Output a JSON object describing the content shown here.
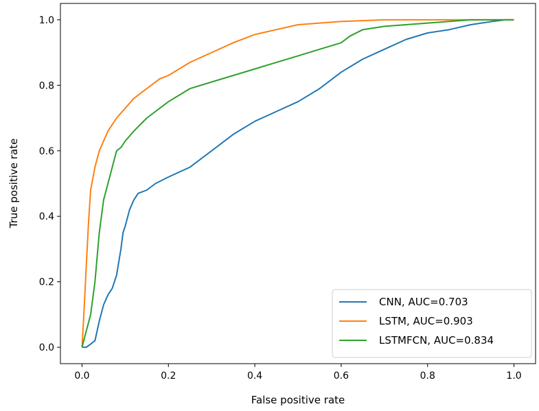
{
  "chart_data": {
    "type": "line",
    "xlabel": "False positive rate",
    "ylabel": "True positive rate",
    "xlim": [
      -0.05,
      1.05
    ],
    "ylim": [
      -0.05,
      1.05
    ],
    "xticks": [
      0.0,
      0.2,
      0.4,
      0.6,
      0.8,
      1.0
    ],
    "yticks": [
      0.0,
      0.2,
      0.4,
      0.6,
      0.8,
      1.0
    ],
    "xtick_labels": [
      "0.0",
      "0.2",
      "0.4",
      "0.6",
      "0.8",
      "1.0"
    ],
    "ytick_labels": [
      "0.0",
      "0.2",
      "0.4",
      "0.6",
      "0.8",
      "1.0"
    ],
    "grid": false,
    "legend_position": "bottom-right",
    "series": [
      {
        "name": "CNN, AUC=0.703",
        "color": "#1f77b4",
        "x": [
          0.0,
          0.01,
          0.02,
          0.03,
          0.04,
          0.05,
          0.06,
          0.07,
          0.08,
          0.09,
          0.095,
          0.1,
          0.11,
          0.12,
          0.13,
          0.15,
          0.17,
          0.2,
          0.25,
          0.3,
          0.35,
          0.4,
          0.45,
          0.5,
          0.55,
          0.6,
          0.65,
          0.7,
          0.75,
          0.8,
          0.85,
          0.9,
          0.95,
          0.98,
          1.0
        ],
        "y": [
          0.0,
          0.0,
          0.01,
          0.02,
          0.08,
          0.13,
          0.16,
          0.18,
          0.22,
          0.3,
          0.35,
          0.37,
          0.42,
          0.45,
          0.47,
          0.48,
          0.5,
          0.52,
          0.55,
          0.6,
          0.65,
          0.69,
          0.72,
          0.75,
          0.79,
          0.84,
          0.88,
          0.91,
          0.94,
          0.96,
          0.97,
          0.985,
          0.995,
          1.0,
          1.0
        ]
      },
      {
        "name": "LSTM, AUC=0.903",
        "color": "#ff7f0e",
        "x": [
          0.0,
          0.005,
          0.01,
          0.015,
          0.02,
          0.03,
          0.04,
          0.05,
          0.06,
          0.07,
          0.08,
          0.1,
          0.12,
          0.15,
          0.18,
          0.2,
          0.25,
          0.3,
          0.35,
          0.4,
          0.45,
          0.5,
          0.6,
          0.7,
          0.8,
          0.9,
          1.0
        ],
        "y": [
          0.0,
          0.12,
          0.25,
          0.38,
          0.48,
          0.55,
          0.6,
          0.63,
          0.66,
          0.68,
          0.7,
          0.73,
          0.76,
          0.79,
          0.82,
          0.83,
          0.87,
          0.9,
          0.93,
          0.955,
          0.97,
          0.985,
          0.995,
          1.0,
          1.0,
          1.0,
          1.0
        ]
      },
      {
        "name": "LSTMFCN, AUC=0.834",
        "color": "#2ca02c",
        "x": [
          0.0,
          0.01,
          0.02,
          0.03,
          0.04,
          0.05,
          0.06,
          0.07,
          0.08,
          0.09,
          0.1,
          0.12,
          0.15,
          0.2,
          0.25,
          0.3,
          0.35,
          0.4,
          0.45,
          0.5,
          0.55,
          0.6,
          0.62,
          0.65,
          0.7,
          0.75,
          0.8,
          0.85,
          0.9,
          1.0
        ],
        "y": [
          0.0,
          0.05,
          0.1,
          0.2,
          0.35,
          0.45,
          0.5,
          0.55,
          0.6,
          0.61,
          0.63,
          0.66,
          0.7,
          0.75,
          0.79,
          0.81,
          0.83,
          0.85,
          0.87,
          0.89,
          0.91,
          0.93,
          0.95,
          0.97,
          0.98,
          0.985,
          0.99,
          0.995,
          1.0,
          1.0
        ]
      }
    ]
  }
}
